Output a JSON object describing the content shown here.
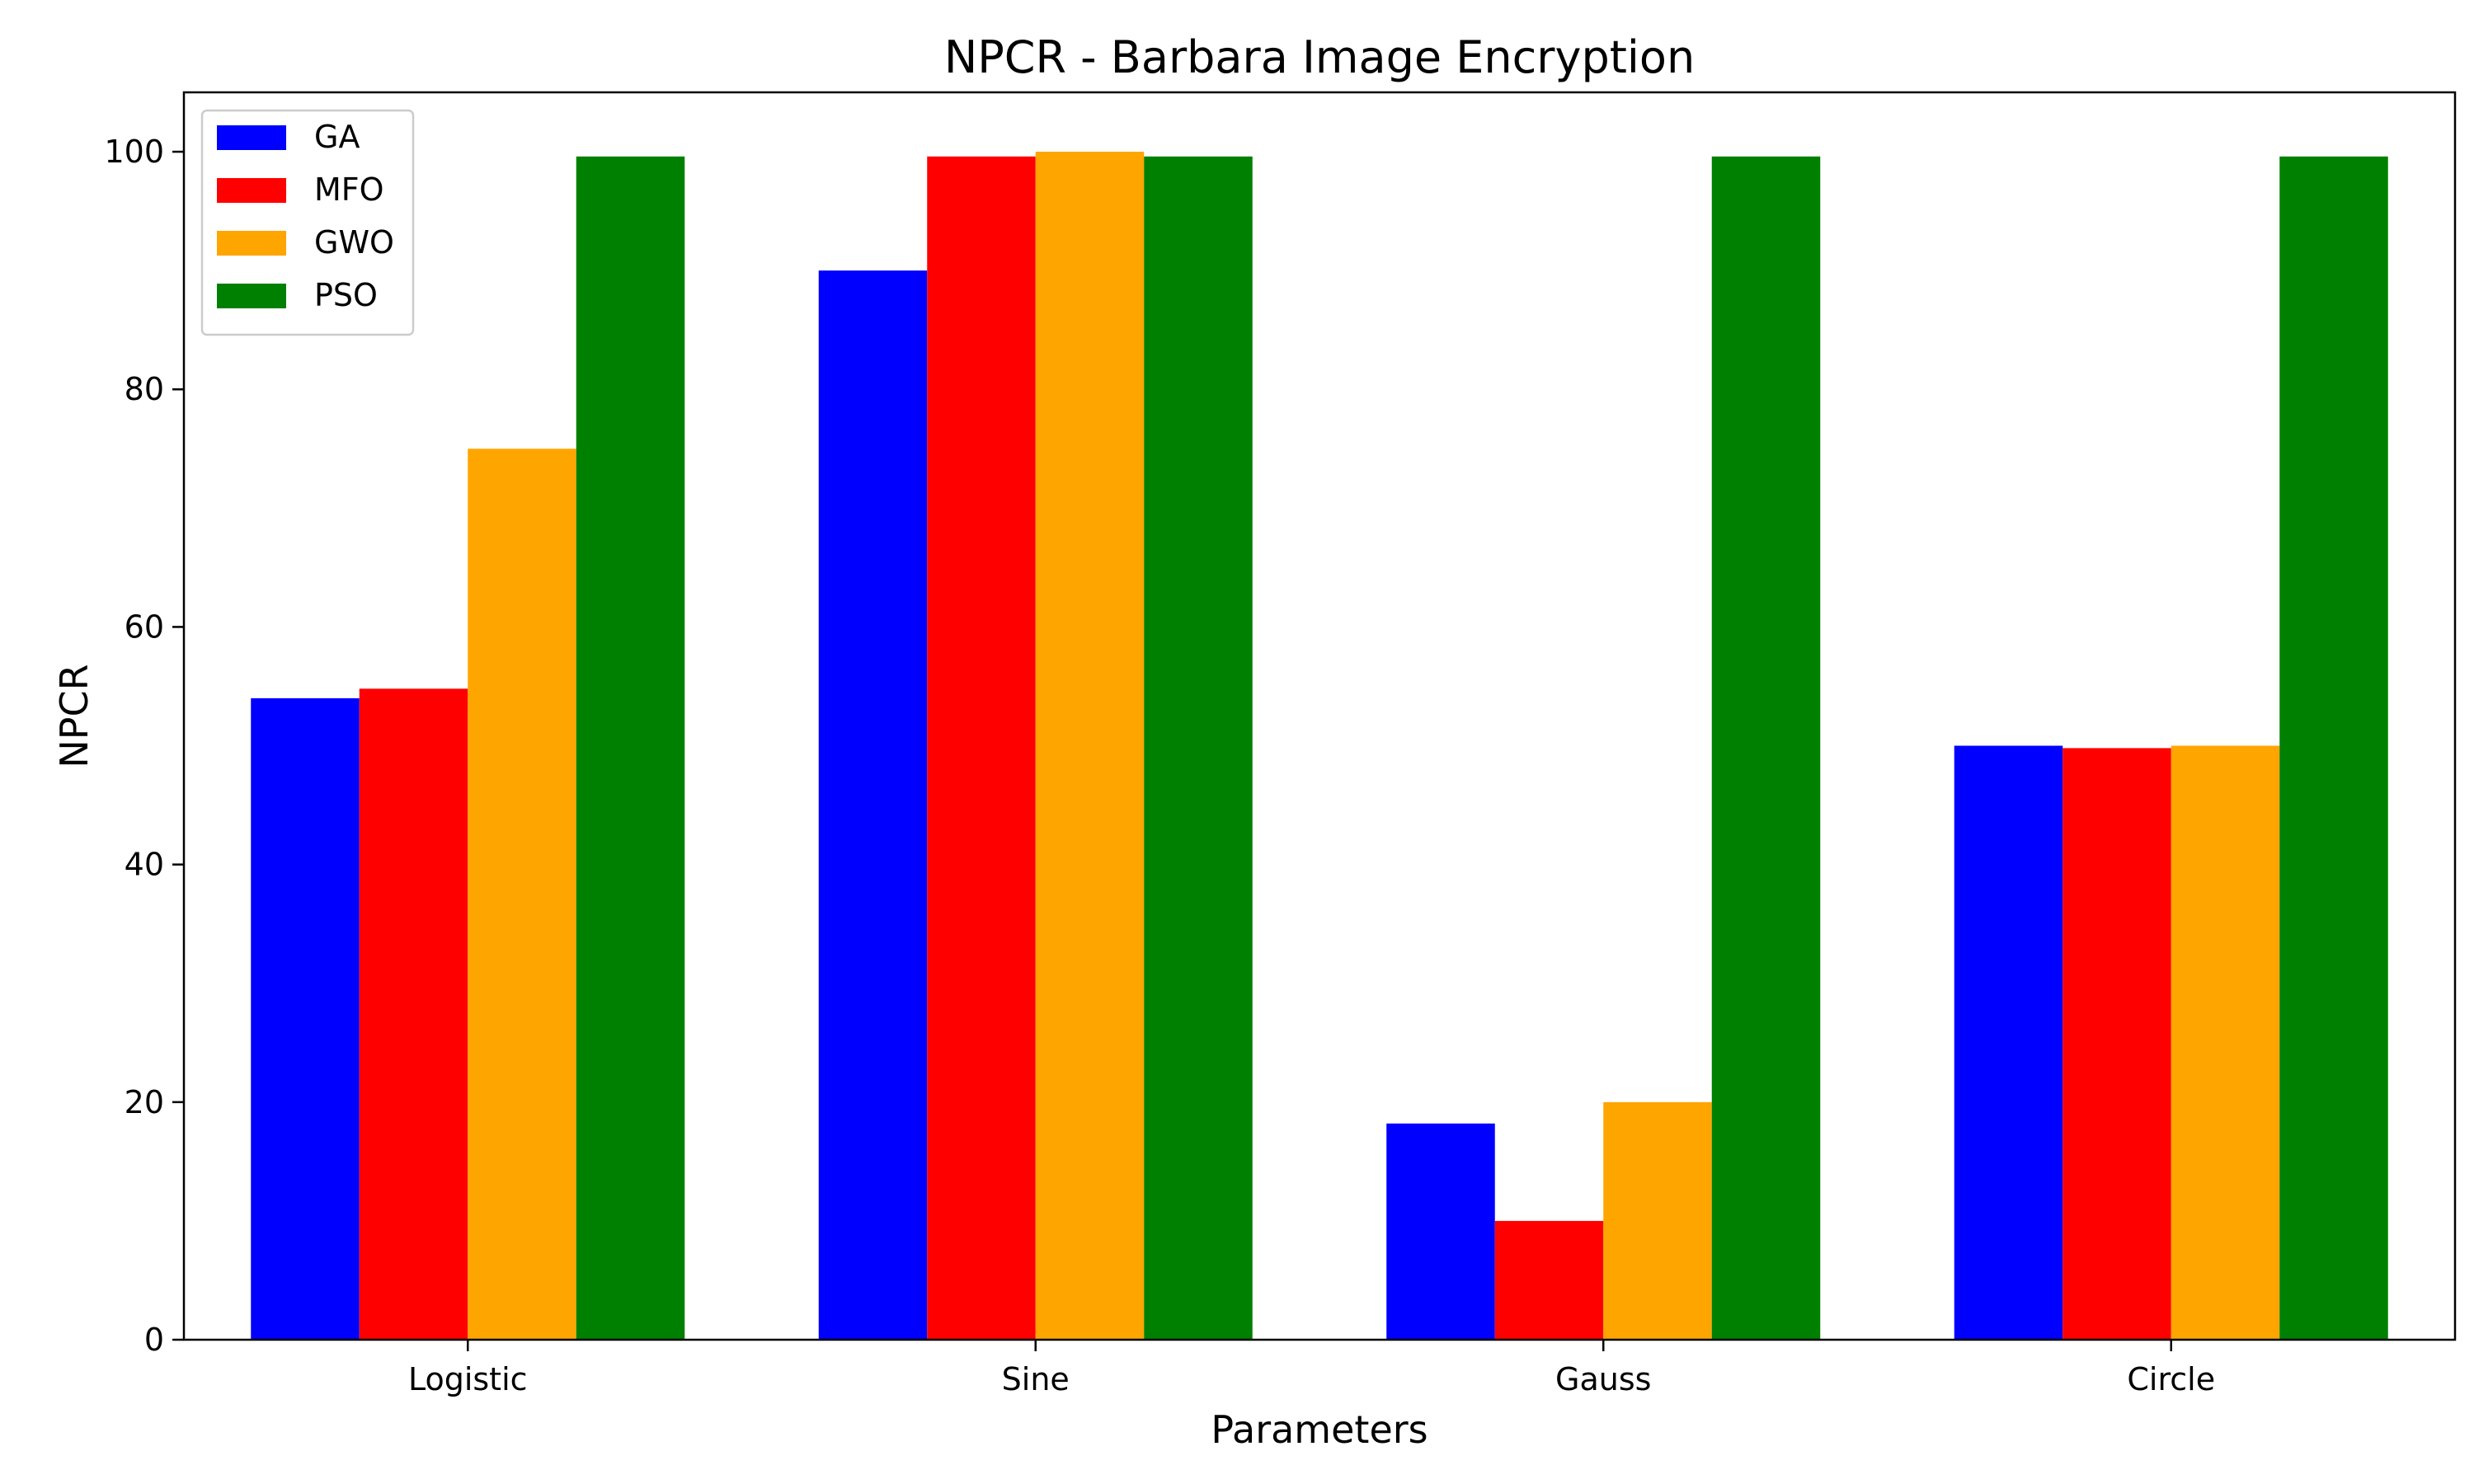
{
  "chart_data": {
    "type": "bar",
    "title": "NPCR - Barbara Image Encryption",
    "xlabel": "Parameters",
    "ylabel": "NPCR",
    "categories": [
      "Logistic",
      "Sine",
      "Gauss",
      "Circle"
    ],
    "ylim": [
      0,
      105
    ],
    "yticks": [
      0,
      20,
      40,
      60,
      80,
      100
    ],
    "grid": false,
    "legend_position": "top-left",
    "series": [
      {
        "name": "GA",
        "color": "#0000ff",
        "values": [
          54.0,
          90.0,
          18.2,
          50.0
        ]
      },
      {
        "name": "MFO",
        "color": "#ff0000",
        "values": [
          54.8,
          99.6,
          10.0,
          49.8
        ]
      },
      {
        "name": "GWO",
        "color": "#ffa500",
        "values": [
          75.0,
          100.0,
          20.0,
          50.0
        ]
      },
      {
        "name": "PSO",
        "color": "#008000",
        "values": [
          99.6,
          99.6,
          99.6,
          99.6
        ]
      }
    ]
  }
}
